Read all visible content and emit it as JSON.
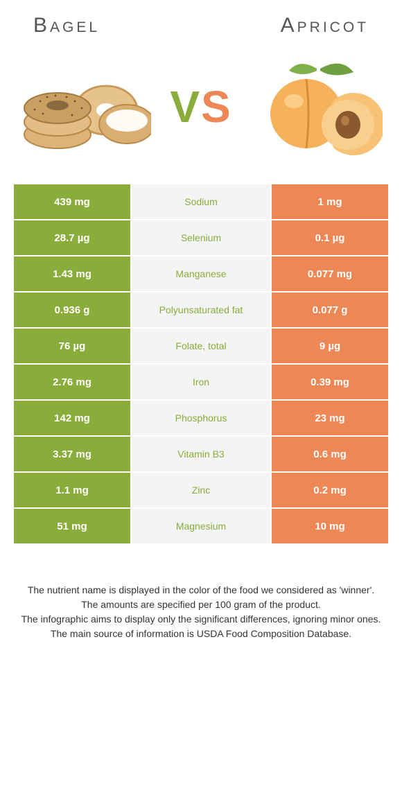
{
  "left_food": {
    "name": "Bagel",
    "title_color": "#555555",
    "col_bg": "#8aac3a"
  },
  "right_food": {
    "name": "Apricot",
    "title_color": "#555555",
    "col_bg": "#ed8756"
  },
  "vs": {
    "v_color": "#8aac3a",
    "s_color": "#ed8756"
  },
  "mid_bg": "#f4f4f4",
  "rows": [
    {
      "left": "439 mg",
      "nutrient": "Sodium",
      "right": "1 mg",
      "winner": "left"
    },
    {
      "left": "28.7 µg",
      "nutrient": "Selenium",
      "right": "0.1 µg",
      "winner": "left"
    },
    {
      "left": "1.43 mg",
      "nutrient": "Manganese",
      "right": "0.077 mg",
      "winner": "left"
    },
    {
      "left": "0.936 g",
      "nutrient": "Polyunsaturated fat",
      "right": "0.077 g",
      "winner": "left"
    },
    {
      "left": "76 µg",
      "nutrient": "Folate, total",
      "right": "9 µg",
      "winner": "left"
    },
    {
      "left": "2.76 mg",
      "nutrient": "Iron",
      "right": "0.39 mg",
      "winner": "left"
    },
    {
      "left": "142 mg",
      "nutrient": "Phosphorus",
      "right": "23 mg",
      "winner": "left"
    },
    {
      "left": "3.37 mg",
      "nutrient": "Vitamin B3",
      "right": "0.6 mg",
      "winner": "left"
    },
    {
      "left": "1.1 mg",
      "nutrient": "Zinc",
      "right": "0.2 mg",
      "winner": "left"
    },
    {
      "left": "51 mg",
      "nutrient": "Magnesium",
      "right": "10 mg",
      "winner": "left"
    }
  ],
  "notes": [
    "The nutrient name is displayed in the color of the food we considered as 'winner'.",
    "The amounts are specified per 100 gram of the product.",
    "The infographic aims to display only the significant differences, ignoring minor ones.",
    "The main source of information is USDA Food Composition Database."
  ]
}
